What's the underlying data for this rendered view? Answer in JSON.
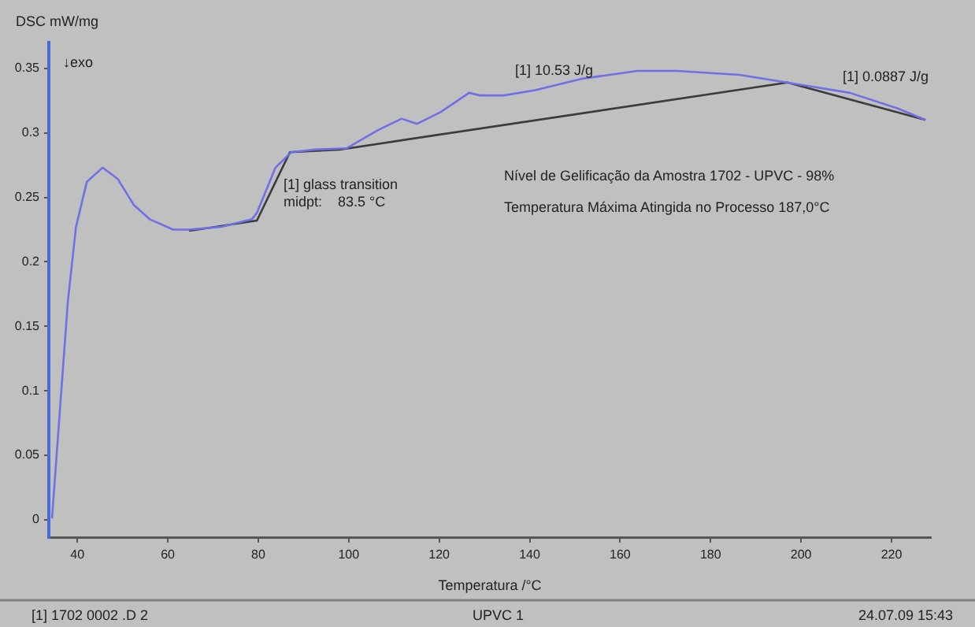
{
  "chart_data": {
    "type": "line",
    "ylabel": "DSC mW/mg",
    "xlabel": "Temperatura /°C",
    "xlim": [
      33.7,
      228.7
    ],
    "xticks": [
      40,
      60,
      80,
      100,
      120,
      140,
      160,
      180,
      200,
      220
    ],
    "ylim": [
      -0.014,
      0.37
    ],
    "yticks": [
      0,
      0.05,
      0.1,
      0.15,
      0.2,
      0.25,
      0.3,
      0.35
    ],
    "grid": false,
    "legend": false,
    "marker": "none",
    "line_style": "solid",
    "series": [
      {
        "color": "#6f6fe6",
        "x": [
          34.4,
          37.9,
          39.7,
          42.1,
          45.6,
          49.0,
          52.5,
          56.0,
          61.2,
          64.7,
          71.7,
          78.6,
          79.7,
          83.8,
          87.3,
          92.5,
          99.5,
          106.4,
          111.7,
          115.1,
          120.3,
          126.6,
          129.0,
          134.3,
          141.2,
          151.7,
          163.8,
          172.5,
          186.4,
          196.9,
          210.8,
          221.3,
          227.5
        ],
        "values": [
          0.001,
          0.169,
          0.227,
          0.262,
          0.273,
          0.264,
          0.244,
          0.233,
          0.225,
          0.225,
          0.227,
          0.233,
          0.238,
          0.273,
          0.285,
          0.287,
          0.288,
          0.302,
          0.311,
          0.307,
          0.316,
          0.331,
          0.329,
          0.329,
          0.333,
          0.342,
          0.348,
          0.348,
          0.345,
          0.339,
          0.331,
          0.319,
          0.31
        ]
      },
      {
        "color": "#3c3c3c",
        "x": [
          64.7,
          79.7,
          87.0,
          98.0,
          197.0,
          227.5
        ],
        "values": [
          0.224,
          0.232,
          0.285,
          0.287,
          0.339,
          0.31
        ]
      }
    ],
    "annotations": [
      "↓exo",
      {
        "text": "[1] glass transition\nmidpt:    83.5 °C",
        "x": 83.5,
        "y": 0.257
      },
      "[1] 10.53 J/g",
      "[1] 0.0887 J/g",
      "Nível de Gelificação da Amostra 1702 - UPVC - 98%",
      "Temperatura Máxima Atingida no Processo 187,0°C",
      "[1] 1702 0002 .D 2",
      "UPVC 1",
      "24.07.09 15:43"
    ]
  }
}
